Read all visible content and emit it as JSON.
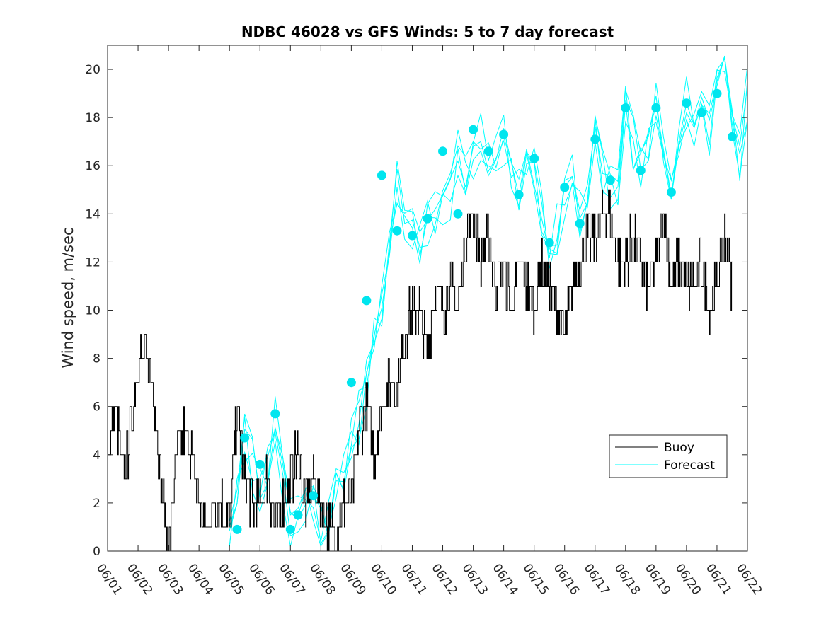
{
  "chart_data": {
    "type": "line",
    "title": "NDBC 46028 vs GFS Winds: 5 to 7 day forecast",
    "xlabel": "",
    "ylabel": "Wind speed, m/sec",
    "ylim": [
      0,
      21
    ],
    "xlim": [
      "06/01",
      "06/22"
    ],
    "y_ticks": [
      "0",
      "2",
      "4",
      "6",
      "8",
      "10",
      "12",
      "14",
      "16",
      "18",
      "20"
    ],
    "x_ticks": [
      "06/01",
      "06/02",
      "06/03",
      "06/04",
      "06/05",
      "06/06",
      "06/07",
      "06/08",
      "06/09",
      "06/10",
      "06/11",
      "06/12",
      "06/13",
      "06/14",
      "06/15",
      "06/16",
      "06/17",
      "06/18",
      "06/19",
      "06/20",
      "06/21",
      "06/22"
    ],
    "legend_position": "lower-right",
    "colors": {
      "buoy": "#000000",
      "forecast": "#00ffff",
      "markers": "#00e5ee"
    },
    "series": [
      {
        "name": "Buoy",
        "x": [
          "06/01 00:00",
          "06/01 06:00",
          "06/01 12:00",
          "06/01 18:00",
          "06/02 00:00",
          "06/02 06:00",
          "06/02 12:00",
          "06/02 18:00",
          "06/03 00:00",
          "06/03 06:00",
          "06/03 12:00",
          "06/03 18:00",
          "06/04 00:00",
          "06/04 06:00",
          "06/04 12:00",
          "06/04 18:00",
          "06/05 00:00",
          "06/05 06:00",
          "06/05 12:00",
          "06/05 18:00",
          "06/06 00:00",
          "06/06 06:00",
          "06/06 12:00",
          "06/06 18:00",
          "06/07 00:00",
          "06/07 06:00",
          "06/07 12:00",
          "06/07 18:00",
          "06/08 00:00",
          "06/08 06:00",
          "06/08 12:00",
          "06/08 18:00",
          "06/09 00:00",
          "06/09 06:00",
          "06/09 12:00",
          "06/09 18:00",
          "06/10 00:00",
          "06/10 06:00",
          "06/10 12:00",
          "06/10 18:00",
          "06/11 00:00",
          "06/11 06:00",
          "06/11 12:00",
          "06/11 18:00",
          "06/12 00:00",
          "06/12 06:00",
          "06/12 12:00",
          "06/12 18:00",
          "06/13 00:00",
          "06/13 06:00",
          "06/13 12:00",
          "06/13 18:00",
          "06/14 00:00",
          "06/14 06:00",
          "06/14 12:00",
          "06/14 18:00",
          "06/15 00:00",
          "06/15 06:00",
          "06/15 12:00",
          "06/15 18:00",
          "06/16 00:00",
          "06/16 06:00",
          "06/16 12:00",
          "06/16 18:00",
          "06/17 00:00",
          "06/17 06:00",
          "06/17 12:00",
          "06/17 18:00",
          "06/18 00:00",
          "06/18 06:00",
          "06/18 12:00",
          "06/18 18:00",
          "06/19 00:00",
          "06/19 06:00",
          "06/19 12:00",
          "06/19 18:00",
          "06/20 00:00",
          "06/20 06:00",
          "06/20 12:00",
          "06/20 18:00",
          "06/21 00:00",
          "06/21 06:00",
          "06/21 12:00"
        ],
        "values": [
          4,
          6,
          3,
          5,
          8,
          8,
          7,
          3,
          0,
          4,
          5,
          4,
          2,
          1,
          2,
          2,
          1,
          6,
          3,
          2,
          2,
          3,
          1,
          2,
          3,
          4,
          2,
          3,
          2,
          1,
          1,
          2,
          2,
          5,
          6,
          4,
          6,
          7,
          7,
          9,
          10,
          10,
          8,
          11,
          10,
          11,
          10,
          13,
          14,
          12,
          13,
          11,
          12,
          10,
          12,
          11,
          10,
          12,
          11,
          10,
          9,
          11,
          12,
          13,
          13,
          14,
          14,
          12,
          12,
          13,
          12,
          11,
          12,
          14,
          11,
          12,
          11,
          11,
          12,
          10,
          11,
          13,
          11
        ],
        "y_range_noise": 1
      },
      {
        "name": "Forecast",
        "x": [
          "06/05 00:00",
          "06/05 06:00",
          "06/05 12:00",
          "06/05 18:00",
          "06/06 00:00",
          "06/06 06:00",
          "06/06 12:00",
          "06/06 18:00",
          "06/07 00:00",
          "06/07 06:00",
          "06/07 12:00",
          "06/07 18:00",
          "06/08 00:00",
          "06/08 06:00",
          "06/08 12:00",
          "06/08 18:00",
          "06/09 00:00",
          "06/09 06:00",
          "06/09 12:00",
          "06/09 18:00",
          "06/10 00:00",
          "06/10 06:00",
          "06/10 12:00",
          "06/10 18:00",
          "06/11 00:00",
          "06/11 06:00",
          "06/11 12:00",
          "06/11 18:00",
          "06/12 00:00",
          "06/12 06:00",
          "06/12 12:00",
          "06/12 18:00",
          "06/13 00:00",
          "06/13 06:00",
          "06/13 12:00",
          "06/13 18:00",
          "06/14 00:00",
          "06/14 06:00",
          "06/14 12:00",
          "06/14 18:00",
          "06/15 00:00",
          "06/15 06:00",
          "06/15 12:00",
          "06/15 18:00",
          "06/16 00:00",
          "06/16 06:00",
          "06/16 12:00",
          "06/16 18:00",
          "06/17 00:00",
          "06/17 06:00",
          "06/17 12:00",
          "06/17 18:00",
          "06/18 00:00",
          "06/18 06:00",
          "06/18 12:00",
          "06/18 18:00",
          "06/19 00:00",
          "06/19 06:00",
          "06/19 12:00",
          "06/19 18:00",
          "06/20 00:00",
          "06/20 06:00",
          "06/20 12:00",
          "06/20 18:00",
          "06/21 00:00",
          "06/21 06:00",
          "06/21 12:00",
          "06/21 18:00",
          "06/22 00:00"
        ],
        "values": [
          1.0,
          2.0,
          4.6,
          3.6,
          2.5,
          3.8,
          5.5,
          3.0,
          1.0,
          1.2,
          1.5,
          2.0,
          1.0,
          1.5,
          2.5,
          3.5,
          4.5,
          5.5,
          7.0,
          8.5,
          10.0,
          12.5,
          15.3,
          14.0,
          13.2,
          12.8,
          13.4,
          14.0,
          13.8,
          14.5,
          16.5,
          15.5,
          16.0,
          17.4,
          16.6,
          16.8,
          17.2,
          16.0,
          14.8,
          15.5,
          16.2,
          14.0,
          12.8,
          13.5,
          15.0,
          15.5,
          14.0,
          15.2,
          17.0,
          16.0,
          15.0,
          15.5,
          18.3,
          17.0,
          15.8,
          17.0,
          18.3,
          17.0,
          15.0,
          17.0,
          18.6,
          17.5,
          18.3,
          17.5,
          19.0,
          20.0,
          17.2,
          16.5,
          19.0
        ],
        "ensemble_spread": 1.2
      },
      {
        "name": "",
        "type": "scatter",
        "x": [
          "06/05 06:00",
          "06/05 12:00",
          "06/06 00:00",
          "06/06 12:00",
          "06/07 00:00",
          "06/07 06:00",
          "06/07 18:00",
          "06/09 00:00",
          "06/09 12:00",
          "06/10 00:00",
          "06/10 12:00",
          "06/11 00:00",
          "06/11 12:00",
          "06/12 00:00",
          "06/12 12:00",
          "06/13 00:00",
          "06/13 12:00",
          "06/14 00:00",
          "06/14 12:00",
          "06/15 00:00",
          "06/15 12:00",
          "06/16 00:00",
          "06/16 12:00",
          "06/17 00:00",
          "06/17 12:00",
          "06/18 00:00",
          "06/18 12:00",
          "06/19 00:00",
          "06/19 12:00",
          "06/20 00:00",
          "06/20 12:00",
          "06/21 00:00",
          "06/21 12:00"
        ],
        "values": [
          0.9,
          4.7,
          3.6,
          5.7,
          0.9,
          1.5,
          2.3,
          7.0,
          10.4,
          15.6,
          13.3,
          13.1,
          13.8,
          16.6,
          14.0,
          17.5,
          16.6,
          17.3,
          14.8,
          16.3,
          12.8,
          15.1,
          13.6,
          17.1,
          15.4,
          18.4,
          15.8,
          18.4,
          14.9,
          18.6,
          18.2,
          19.0,
          17.2
        ]
      }
    ]
  }
}
